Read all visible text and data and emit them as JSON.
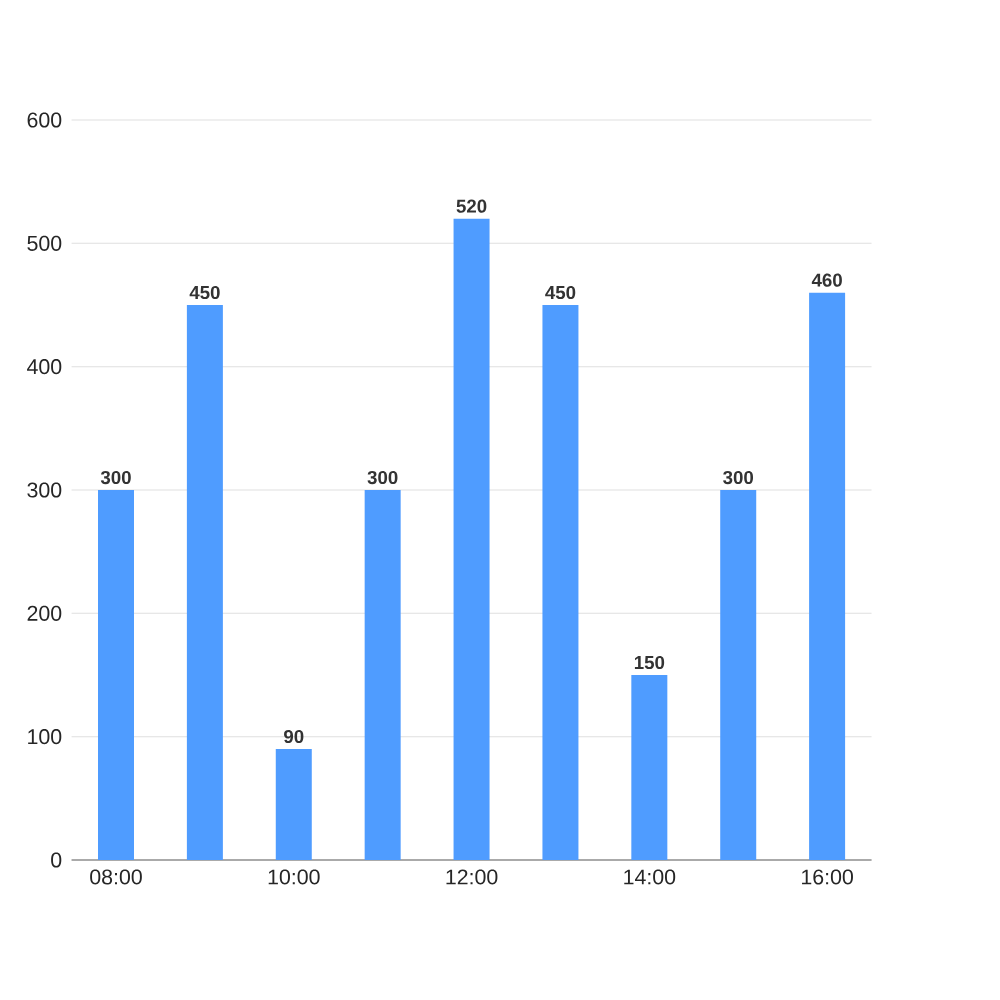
{
  "chart_data": {
    "type": "bar",
    "categories": [
      "08:00",
      null,
      "10:00",
      null,
      "12:00",
      null,
      "14:00",
      null,
      "16:00"
    ],
    "values": [
      300,
      450,
      90,
      300,
      520,
      450,
      150,
      300,
      460
    ],
    "color": "#4f9cff",
    "ylim": [
      0,
      600
    ],
    "yticks": [
      0,
      100,
      200,
      300,
      400,
      500,
      600
    ],
    "grid": "y",
    "data_labels": true
  }
}
